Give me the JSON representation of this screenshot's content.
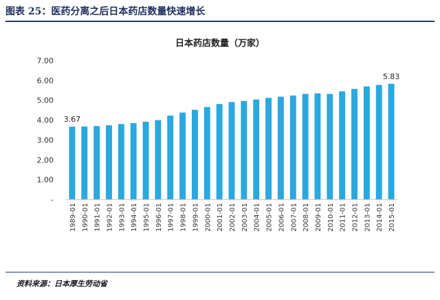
{
  "figure": {
    "label": "图表 25：医药分离之后日本药店数量快速增长",
    "source": "资料来源：日本厚生劳动省"
  },
  "chart_data": {
    "type": "bar",
    "title": "日本药店数量（万家）",
    "xlabel": "",
    "ylabel": "",
    "ylim": [
      0,
      7
    ],
    "y_ticks": [
      "-",
      "1.00",
      "2.00",
      "3.00",
      "4.00",
      "5.00",
      "6.00",
      "7.00"
    ],
    "grid": false,
    "bar_color": "#2aa8e0",
    "categories": [
      "1989-01",
      "1990-01",
      "1991-01",
      "1992-01",
      "1993-01",
      "1994-01",
      "1995-01",
      "1996-01",
      "1997-01",
      "1998-01",
      "1999-01",
      "2000-01",
      "2001-01",
      "2002-01",
      "2003-01",
      "2004-01",
      "2005-01",
      "2006-01",
      "2007-01",
      "2008-01",
      "2009-01",
      "2010-01",
      "2011-01",
      "2012-01",
      "2013-01",
      "2014-01",
      "2015-01"
    ],
    "values": [
      3.67,
      3.68,
      3.7,
      3.74,
      3.8,
      3.85,
      3.92,
      4.0,
      4.23,
      4.38,
      4.52,
      4.66,
      4.81,
      4.91,
      4.96,
      5.04,
      5.12,
      5.18,
      5.24,
      5.32,
      5.35,
      5.32,
      5.45,
      5.57,
      5.7,
      5.77,
      5.83
    ],
    "data_labels": [
      {
        "index": 0,
        "text": "3.67"
      },
      {
        "index": 26,
        "text": "5.83"
      }
    ]
  }
}
